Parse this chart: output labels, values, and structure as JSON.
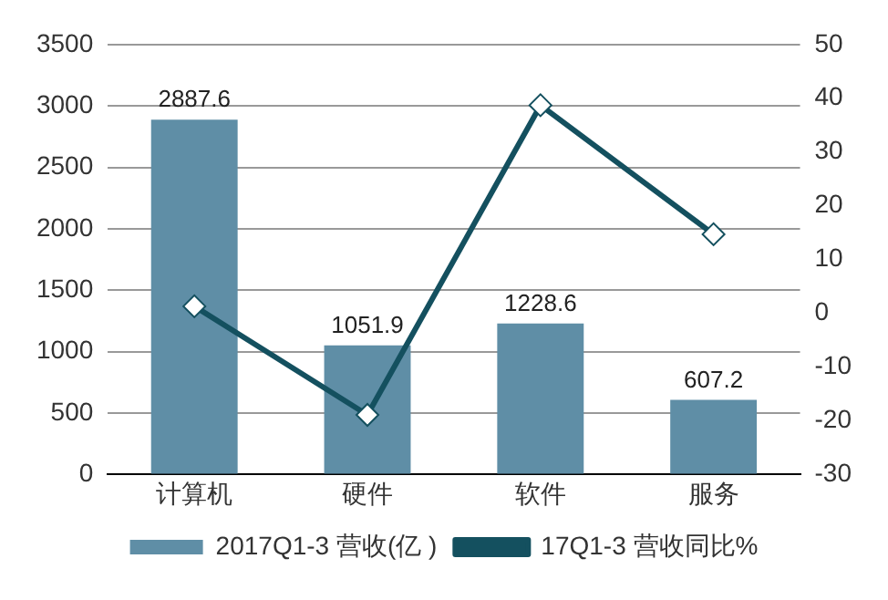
{
  "chart_data": {
    "type": "bar",
    "categories": [
      "计算机",
      "硬件",
      "软件",
      "服务"
    ],
    "series": [
      {
        "name": "2017Q1-3 营收(亿 )",
        "color": "#5f8ea6",
        "values": [
          2887.6,
          1051.9,
          1228.6,
          607.2
        ],
        "value_labels": [
          "2887.6",
          "1051.9",
          "1228.6",
          "607.2"
        ]
      },
      {
        "name": "17Q1-3 营收同比%",
        "type": "line",
        "axis": "y2",
        "color": "#14505f",
        "values": [
          1.3,
          -18.9,
          38.7,
          14.7
        ],
        "marker": "diamond"
      }
    ],
    "ylim": [
      0,
      3500
    ],
    "yticks": [
      0,
      500,
      1000,
      1500,
      2000,
      2500,
      3000,
      3500
    ],
    "y2lim": [
      -30,
      50
    ],
    "y2ticks": [
      -30,
      -20,
      -10,
      0,
      10,
      20,
      30,
      40,
      50
    ],
    "grid": "y",
    "legend": "bottom"
  }
}
